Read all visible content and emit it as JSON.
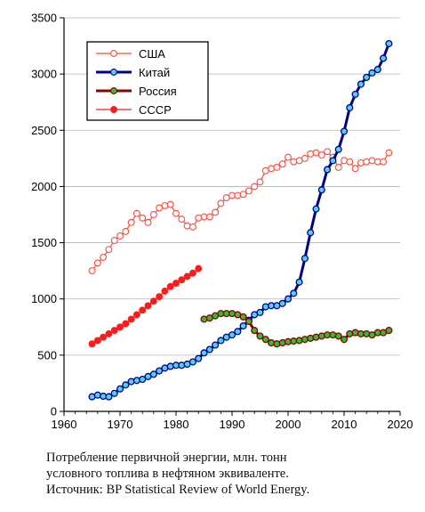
{
  "caption": {
    "line1": "Потребление первичной энергии, млн. тонн",
    "line2": "условного топлива в нефтяном эквиваленте.",
    "line3": "Источник: BP Statistical Review of World Energy."
  },
  "chart_data": {
    "type": "line",
    "title": "",
    "xlabel": "",
    "ylabel": "",
    "xlim": [
      1960,
      2020
    ],
    "ylim": [
      0,
      3500
    ],
    "xticks": [
      1960,
      1970,
      1980,
      1990,
      2000,
      2010,
      2020
    ],
    "yticks": [
      0,
      500,
      1000,
      1500,
      2000,
      2500,
      3000,
      3500
    ],
    "grid": "horizontal",
    "legend_position": "top-left",
    "series": [
      {
        "name": "США",
        "color": "#ff4a3d",
        "marker_fill": "#ffffff",
        "line_width": 1.2,
        "x": [
          1965,
          1966,
          1967,
          1968,
          1969,
          1970,
          1971,
          1972,
          1973,
          1974,
          1975,
          1976,
          1977,
          1978,
          1979,
          1980,
          1981,
          1982,
          1983,
          1984,
          1985,
          1986,
          1987,
          1988,
          1989,
          1990,
          1991,
          1992,
          1993,
          1994,
          1995,
          1996,
          1997,
          1998,
          1999,
          2000,
          2001,
          2002,
          2003,
          2004,
          2005,
          2006,
          2007,
          2008,
          2009,
          2010,
          2011,
          2012,
          2013,
          2014,
          2015,
          2016,
          2017,
          2018
        ],
        "values": [
          1250,
          1320,
          1370,
          1440,
          1520,
          1560,
          1600,
          1680,
          1760,
          1720,
          1680,
          1750,
          1810,
          1830,
          1840,
          1760,
          1710,
          1650,
          1640,
          1720,
          1730,
          1730,
          1770,
          1850,
          1900,
          1920,
          1920,
          1930,
          1960,
          2000,
          2040,
          2140,
          2160,
          2170,
          2200,
          2260,
          2220,
          2230,
          2250,
          2290,
          2300,
          2280,
          2310,
          2260,
          2170,
          2230,
          2220,
          2160,
          2210,
          2220,
          2230,
          2220,
          2220,
          2300
        ]
      },
      {
        "name": "Китай",
        "color": "#00008b",
        "marker_fill": "#4fd0f0",
        "line_width": 3,
        "x": [
          1965,
          1966,
          1967,
          1968,
          1969,
          1970,
          1971,
          1972,
          1973,
          1974,
          1975,
          1976,
          1977,
          1978,
          1979,
          1980,
          1981,
          1982,
          1983,
          1984,
          1985,
          1986,
          1987,
          1988,
          1989,
          1990,
          1991,
          1992,
          1993,
          1994,
          1995,
          1996,
          1997,
          1998,
          1999,
          2000,
          2001,
          2002,
          2003,
          2004,
          2005,
          2006,
          2007,
          2008,
          2009,
          2010,
          2011,
          2012,
          2013,
          2014,
          2015,
          2016,
          2017,
          2018
        ],
        "values": [
          130,
          145,
          135,
          130,
          160,
          200,
          235,
          265,
          275,
          285,
          310,
          330,
          360,
          385,
          400,
          410,
          410,
          420,
          440,
          470,
          520,
          550,
          590,
          630,
          660,
          680,
          710,
          760,
          810,
          860,
          880,
          930,
          940,
          940,
          960,
          1000,
          1050,
          1150,
          1360,
          1590,
          1800,
          1970,
          2150,
          2230,
          2330,
          2490,
          2700,
          2820,
          2910,
          2970,
          3010,
          3040,
          3140,
          3270
        ]
      },
      {
        "name": "Россия",
        "color": "#8b0000",
        "marker_fill": "#33bb33",
        "line_width": 3,
        "x": [
          1985,
          1986,
          1987,
          1988,
          1989,
          1990,
          1991,
          1992,
          1993,
          1994,
          1995,
          1996,
          1997,
          1998,
          1999,
          2000,
          2001,
          2002,
          2003,
          2004,
          2005,
          2006,
          2007,
          2008,
          2009,
          2010,
          2011,
          2012,
          2013,
          2014,
          2015,
          2016,
          2017,
          2018
        ],
        "values": [
          820,
          830,
          850,
          870,
          870,
          870,
          860,
          840,
          800,
          720,
          670,
          640,
          610,
          600,
          610,
          620,
          625,
          630,
          640,
          650,
          660,
          670,
          680,
          680,
          670,
          640,
          690,
          700,
          690,
          690,
          680,
          700,
          700,
          720
        ]
      },
      {
        "name": "СССР",
        "color": "#ff1a1a",
        "marker_fill": "#ff1a1a",
        "line_width": 1.2,
        "x": [
          1965,
          1966,
          1967,
          1968,
          1969,
          1970,
          1971,
          1972,
          1973,
          1974,
          1975,
          1976,
          1977,
          1978,
          1979,
          1980,
          1981,
          1982,
          1983,
          1984
        ],
        "values": [
          600,
          630,
          660,
          690,
          720,
          750,
          780,
          820,
          860,
          900,
          940,
          980,
          1020,
          1070,
          1110,
          1140,
          1170,
          1200,
          1230,
          1270
        ]
      }
    ]
  }
}
